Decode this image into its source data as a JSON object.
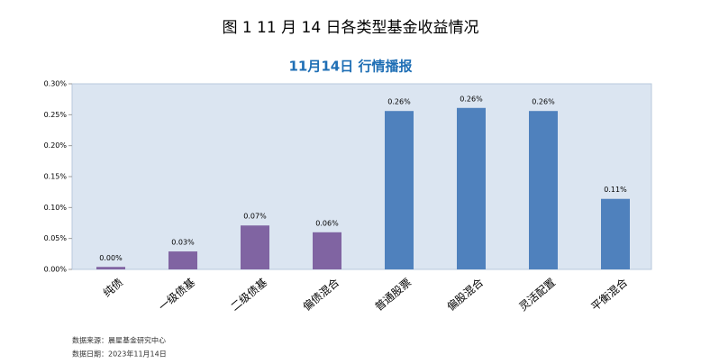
{
  "figure_caption": "图 1  11 月 14 日各类型基金收益情况",
  "chart_data": {
    "type": "bar",
    "title": "11月14日 行情播报",
    "categories": [
      "纯债",
      "一级债基",
      "二级债基",
      "偏债混合",
      "普通股票",
      "偏股混合",
      "灵活配置",
      "平衡混合"
    ],
    "values": [
      0.004,
      0.029,
      0.071,
      0.06,
      0.256,
      0.261,
      0.256,
      0.114
    ],
    "value_labels": [
      "0.00%",
      "0.03%",
      "0.07%",
      "0.06%",
      "0.26%",
      "0.26%",
      "0.26%",
      "0.11%"
    ],
    "colors": [
      "#8064a2",
      "#8064a2",
      "#8064a2",
      "#8064a2",
      "#4f81bd",
      "#4f81bd",
      "#4f81bd",
      "#4f81bd"
    ],
    "ylim": [
      0,
      0.3
    ],
    "yticks": [
      {
        "value": 0,
        "label": "0.00%"
      },
      {
        "value": 0.05,
        "label": "0.05%"
      },
      {
        "value": 0.1,
        "label": "0.10%"
      },
      {
        "value": 0.15,
        "label": "0.15%"
      },
      {
        "value": 0.2,
        "label": "0.20%"
      },
      {
        "value": 0.25,
        "label": "0.25%"
      },
      {
        "value": 0.3,
        "label": "0.30%"
      }
    ]
  },
  "notes": [
    "数据来源：晨星基金研究中心",
    "数据日期：2023年11月14日"
  ]
}
